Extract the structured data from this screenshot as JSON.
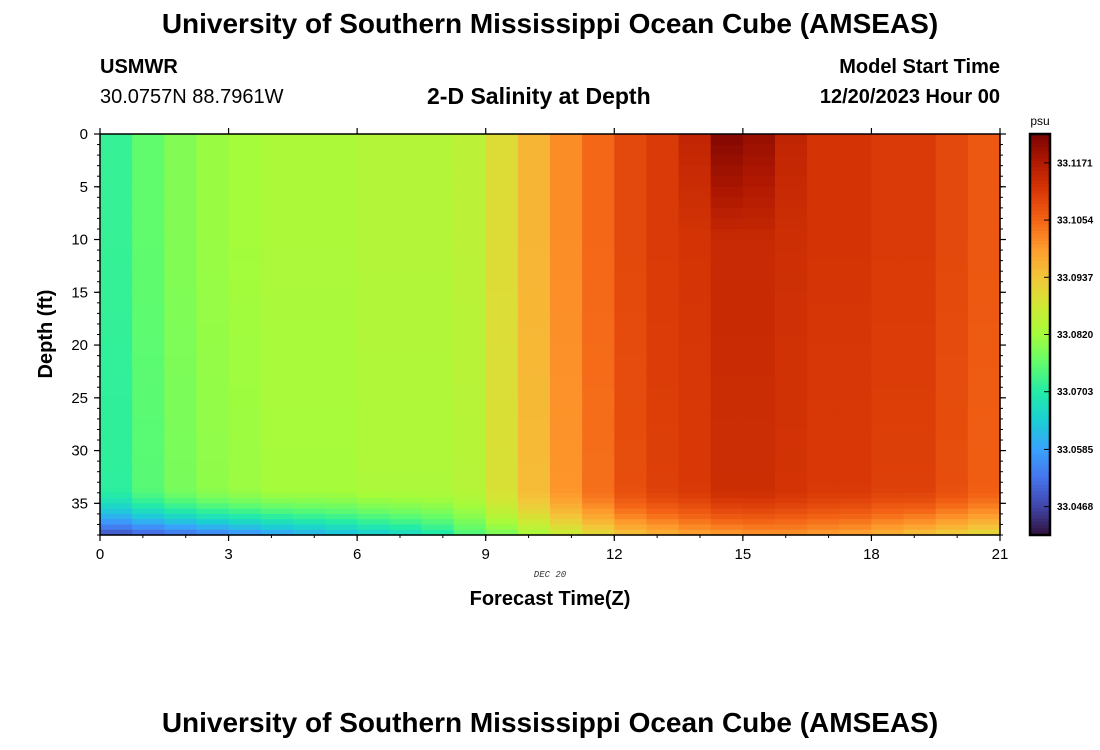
{
  "header": {
    "title": "University of Southern Mississippi Ocean Cube (AMSEAS)",
    "station_id": "USMWR",
    "station_coords": "30.0757N  88.7961W",
    "plot_title": "2-D Salinity at Depth",
    "start_label": "Model Start Time",
    "start_value": "12/20/2023 Hour 00"
  },
  "footer": {
    "title": "University of Southern Mississippi Ocean Cube (AMSEAS)"
  },
  "chart_data": {
    "type": "heatmap",
    "title": "2-D Salinity at Depth",
    "xlabel": "Forecast Time(Z)",
    "ylabel": "Depth (ft)",
    "xlim": [
      0,
      21
    ],
    "ylim": [
      0,
      38
    ],
    "x_ticks": [
      0,
      3,
      6,
      9,
      12,
      15,
      18,
      21
    ],
    "y_ticks": [
      0,
      5,
      10,
      15,
      20,
      25,
      30,
      35
    ],
    "date_label": "DEC 20",
    "colorbar": {
      "unit": "psu",
      "ticks": [
        "33.1171",
        "33.1054",
        "33.0937",
        "33.0820",
        "33.0703",
        "33.0585",
        "33.0468"
      ],
      "min": 33.041,
      "max": 33.123,
      "colormap": [
        "#30123b",
        "#4145ab",
        "#4675ed",
        "#39a2fc",
        "#1bcfd4",
        "#24eca6",
        "#61fc6c",
        "#a4fc3b",
        "#d1e834",
        "#f3c63a",
        "#fe9b2d",
        "#f36315",
        "#d93806",
        "#b11901",
        "#7a0402"
      ]
    },
    "columns": {
      "x_starts": [
        0,
        0.75,
        1.5,
        2.25,
        3,
        3.75,
        4.5,
        5.25,
        6,
        6.75,
        7.5,
        8.25,
        9,
        9.75,
        10.5,
        11.25,
        12,
        12.75,
        13.5,
        14.25,
        15,
        15.75,
        16.5,
        17.25,
        18,
        18.75,
        19.5,
        20.25,
        21
      ],
      "upper_salinity": [
        33.072,
        33.076,
        33.079,
        33.081,
        33.082,
        33.083,
        33.083,
        33.083,
        33.084,
        33.084,
        33.084,
        33.085,
        33.09,
        33.096,
        33.101,
        33.105,
        33.109,
        33.111,
        33.112,
        33.114,
        33.114,
        33.113,
        33.112,
        33.112,
        33.111,
        33.111,
        33.109,
        33.107,
        33.104
      ],
      "near_surface_peak": [
        0,
        0,
        0,
        0,
        0,
        0,
        0,
        0,
        0,
        0,
        0,
        0,
        0,
        0,
        0,
        0,
        0,
        0,
        0.003,
        0.008,
        0.006,
        0.002,
        0,
        0,
        0,
        0,
        0,
        0,
        0
      ],
      "bottom_salinity": [
        33.048,
        33.05,
        33.052,
        33.054,
        33.056,
        33.058,
        33.06,
        33.062,
        33.064,
        33.066,
        33.069,
        33.074,
        33.078,
        33.082,
        33.086,
        33.09,
        33.094,
        33.096,
        33.098,
        33.099,
        33.1,
        33.1,
        33.099,
        33.098,
        33.096,
        33.094,
        33.092,
        33.09,
        33.088
      ]
    },
    "bottom_layer_start_depth": 33.5
  }
}
